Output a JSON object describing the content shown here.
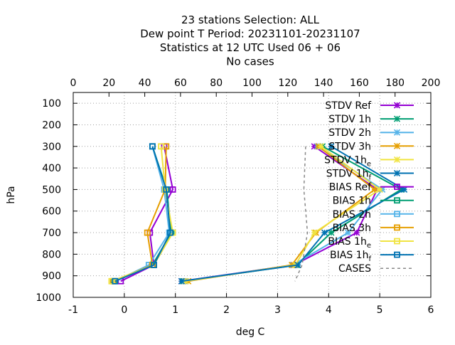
{
  "chart_data": {
    "type": "line",
    "title_lines": [
      "23 stations Selection: ALL",
      "Dew point T  Period: 20231101-20231107",
      "Statistics at 12 UTC  Used  06 + 06",
      "No cases"
    ],
    "xlabel": "deg C",
    "ylabel": "hPa",
    "xlim": [
      -1,
      6
    ],
    "x2lim": [
      0,
      200
    ],
    "ylim": [
      1000,
      50
    ],
    "y_reversed": true,
    "xticks": [
      "-1",
      "0",
      "1",
      "2",
      "3",
      "4",
      "5",
      "6"
    ],
    "x2ticks": [
      "0",
      "20",
      "40",
      "60",
      "80",
      "100",
      "120",
      "140",
      "160",
      "180",
      "200"
    ],
    "yticks": [
      "100",
      "200",
      "300",
      "400",
      "500",
      "600",
      "700",
      "800",
      "900",
      "1000"
    ],
    "grid": true,
    "legend_position": "top-right",
    "series": [
      {
        "name": "STDV Ref",
        "sub": "",
        "color": "#9400d3",
        "marker": "x",
        "axis": "x",
        "y": [
          300,
          500,
          700,
          850,
          925
        ],
        "x": [
          3.72,
          4.95,
          4.55,
          3.32,
          1.12
        ]
      },
      {
        "name": "STDV 1h",
        "sub": "",
        "color": "#009e73",
        "marker": "x",
        "axis": "x",
        "y": [
          300,
          500,
          700,
          850,
          925
        ],
        "x": [
          3.88,
          5.42,
          4.05,
          3.38,
          1.15
        ]
      },
      {
        "name": "STDV 2h",
        "sub": "",
        "color": "#56b4e9",
        "marker": "x",
        "axis": "x",
        "y": [
          300,
          500,
          700,
          850,
          925
        ],
        "x": [
          3.78,
          5.05,
          4.38,
          3.3,
          1.18
        ]
      },
      {
        "name": "STDV 3h",
        "sub": "",
        "color": "#e69f00",
        "marker": "x",
        "axis": "x",
        "y": [
          300,
          500,
          700,
          850,
          925
        ],
        "x": [
          3.8,
          4.9,
          3.75,
          3.28,
          1.25
        ]
      },
      {
        "name": "STDV 1h",
        "sub": "e",
        "color": "#f0e442",
        "marker": "x",
        "axis": "x",
        "y": [
          300,
          500,
          700,
          850,
          925
        ],
        "x": [
          3.85,
          5.0,
          3.72,
          3.35,
          1.2
        ]
      },
      {
        "name": "STDV 1h",
        "sub": "f",
        "color": "#0072b2",
        "marker": "x",
        "axis": "x",
        "y": [
          300,
          500,
          700,
          850,
          925
        ],
        "x": [
          4.05,
          5.48,
          3.92,
          3.4,
          1.12
        ]
      },
      {
        "name": "BIAS Ref",
        "sub": "",
        "color": "#9400d3",
        "marker": "square",
        "axis": "x",
        "y": [
          300,
          500,
          700,
          850,
          925
        ],
        "x": [
          0.78,
          0.95,
          0.5,
          0.58,
          -0.07
        ]
      },
      {
        "name": "BIAS 1h",
        "sub": "",
        "color": "#009e73",
        "marker": "square",
        "axis": "x",
        "y": [
          300,
          500,
          700,
          850,
          925
        ],
        "x": [
          0.55,
          0.83,
          0.92,
          0.55,
          -0.2
        ]
      },
      {
        "name": "BIAS 2h",
        "sub": "",
        "color": "#56b4e9",
        "marker": "square",
        "axis": "x",
        "y": [
          300,
          500,
          700,
          850,
          925
        ],
        "x": [
          0.55,
          0.78,
          0.88,
          0.48,
          -0.18
        ]
      },
      {
        "name": "BIAS 3h",
        "sub": "",
        "color": "#e69f00",
        "marker": "square",
        "axis": "x",
        "y": [
          300,
          500,
          700,
          850,
          925
        ],
        "x": [
          0.82,
          0.8,
          0.45,
          0.55,
          -0.22
        ]
      },
      {
        "name": "BIAS 1h",
        "sub": "e",
        "color": "#f0e442",
        "marker": "square",
        "axis": "x",
        "y": [
          300,
          500,
          700,
          850,
          925
        ],
        "x": [
          0.72,
          0.8,
          0.95,
          0.58,
          -0.25
        ]
      },
      {
        "name": "BIAS 1h",
        "sub": "f",
        "color": "#0072b2",
        "marker": "square",
        "axis": "x",
        "y": [
          300,
          500,
          700,
          850,
          925
        ],
        "x": [
          0.55,
          0.82,
          0.9,
          0.58,
          -0.18
        ]
      },
      {
        "name": "CASES",
        "sub": "",
        "color": "#888888",
        "marker": "none",
        "axis": "x2",
        "dashed": true,
        "y": [
          300,
          500,
          700,
          850,
          925
        ],
        "x": [
          130,
          129,
          131,
          128,
          124
        ]
      }
    ]
  }
}
